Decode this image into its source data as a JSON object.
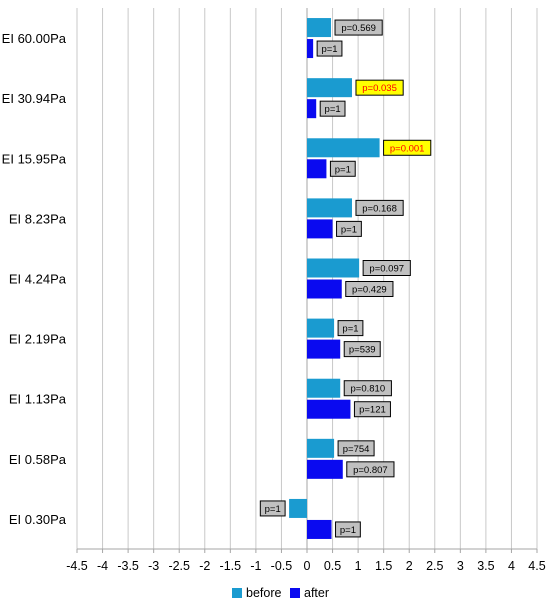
{
  "chart_data": {
    "type": "bar",
    "orientation": "horizontal",
    "categories": [
      "EI 60.00Pa",
      "EI 30.94Pa",
      "EI 15.95Pa",
      "EI 8.23Pa",
      "EI 4.24Pa",
      "EI 2.19Pa",
      "EI 1.13Pa",
      "EI 0.58Pa",
      "EI 0.30Pa"
    ],
    "series": [
      {
        "name": "before",
        "color": "#1a9bd0",
        "values": [
          0.47,
          0.88,
          1.42,
          0.88,
          1.02,
          0.53,
          0.65,
          0.53,
          -0.35
        ],
        "labels": [
          "p=0.569",
          "p=0.035",
          "p=0.001",
          "p=0.168",
          "p=0.097",
          "p=1",
          "p=0.810",
          "p=754",
          "p=1"
        ],
        "highlight": [
          false,
          true,
          true,
          false,
          false,
          false,
          false,
          false,
          false
        ]
      },
      {
        "name": "after",
        "color": "#0a0af0",
        "values": [
          0.12,
          0.18,
          0.38,
          0.5,
          0.68,
          0.65,
          0.85,
          0.7,
          0.48
        ],
        "labels": [
          "p=1",
          "p=1",
          "p=1",
          "p=1",
          "p=0.429",
          "p=539",
          "p=121",
          "p=0.807",
          "p=1"
        ],
        "highlight": [
          false,
          false,
          false,
          false,
          false,
          false,
          false,
          false,
          false
        ]
      }
    ],
    "xlim": [
      -4.5,
      4.5
    ],
    "xticks": [
      "-4.5",
      "-4",
      "-3.5",
      "-3",
      "-2.5",
      "-2",
      "-1.5",
      "-1",
      "-0.5",
      "0",
      "0.5",
      "1",
      "1.5",
      "2",
      "2.5",
      "3",
      "3.5",
      "4",
      "4.5"
    ],
    "grid": "vertical",
    "legend_position": "bottom",
    "label_box_color": "#c0c0c0",
    "highlight_box_color": "#ffff00",
    "highlight_text_color": "#ff0000"
  }
}
